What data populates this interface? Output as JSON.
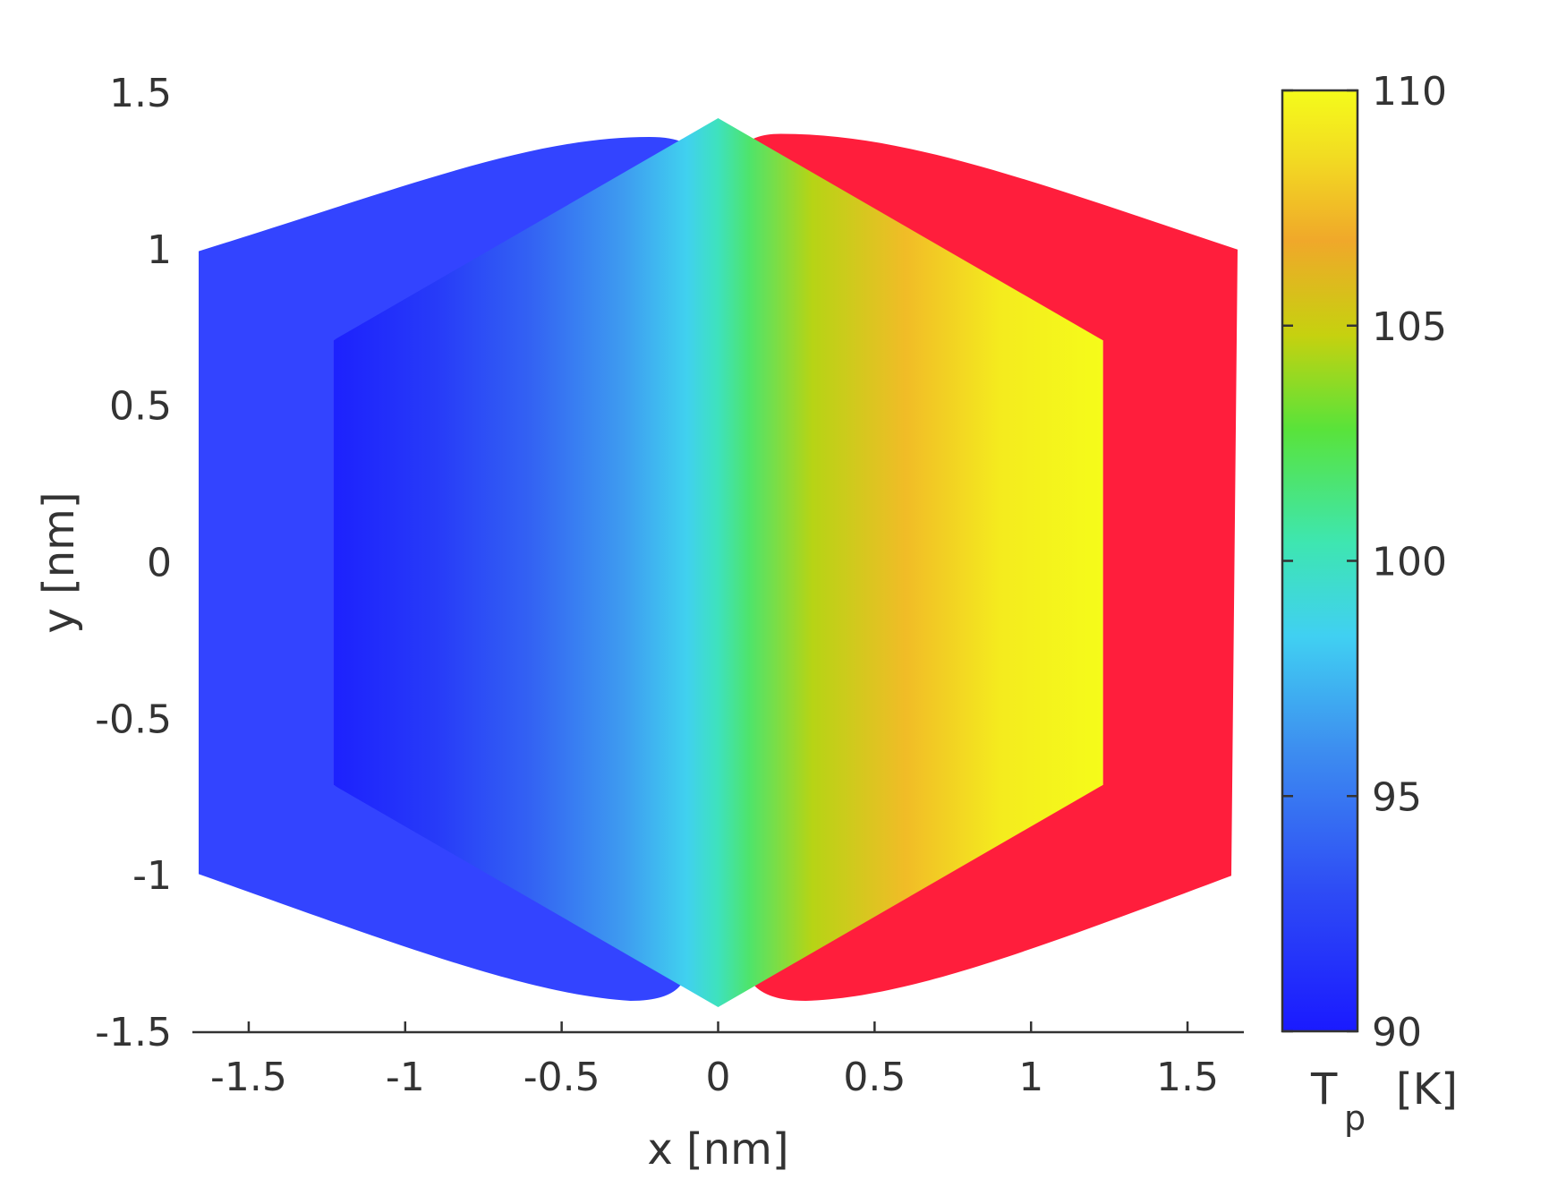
{
  "chart_data": {
    "type": "heatmap",
    "title": "",
    "xlabel": "x [nm]",
    "ylabel": "y [nm]",
    "xlim": [
      -1.68,
      1.68
    ],
    "ylim": [
      -1.5,
      1.5
    ],
    "x_ticks": [
      -1.5,
      -1,
      -0.5,
      0,
      0.5,
      1,
      1.5
    ],
    "x_tick_labels": [
      "-1.5",
      "-1",
      "-0.5",
      "0",
      "0.5",
      "1",
      "1.5"
    ],
    "y_ticks": [
      -1.5,
      -1,
      -0.5,
      0,
      0.5,
      1,
      1.5
    ],
    "y_tick_labels": [
      "-1.5",
      "-1",
      "-0.5",
      "0",
      "0.5",
      "1",
      "1.5"
    ],
    "grid": false,
    "colorbar": {
      "label_main": "T",
      "label_sub": "p",
      "label_unit": "[K]",
      "range": [
        90,
        110
      ],
      "ticks": [
        90,
        95,
        100,
        105,
        110
      ],
      "tick_labels": [
        "90",
        "95",
        "100",
        "105",
        "110"
      ],
      "colormap": "jet-like (blue - cyan - green - yellow)"
    },
    "regions": [
      {
        "name": "left lead",
        "temperature": 90,
        "color": "#3344ff"
      },
      {
        "name": "right lead",
        "temperature": 110,
        "color": "#ff1e3c"
      },
      {
        "name": "hexagonal flake",
        "temperature_min": 90,
        "temperature_max": 110
      }
    ],
    "temperature_profile": {
      "x": [
        -1.22,
        -0.9,
        -0.6,
        -0.3,
        -0.1,
        0,
        0.1,
        0.3,
        0.6,
        0.9,
        1.22
      ],
      "T": [
        90.5,
        92,
        94,
        96.5,
        98.5,
        100,
        101.8,
        104.5,
        107.5,
        109.3,
        110
      ]
    }
  }
}
